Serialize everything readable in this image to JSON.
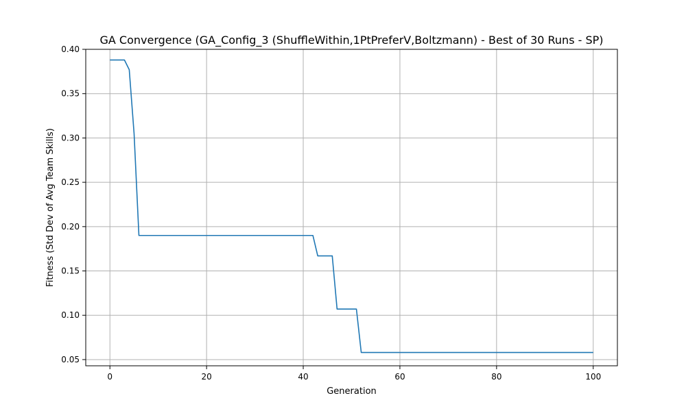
{
  "chart_data": {
    "type": "line",
    "title": "GA Convergence (GA_Config_3 (ShuffleWithin,1PtPreferV,Boltzmann) - Best of 30 Runs - SP)",
    "xlabel": "Generation",
    "ylabel": "Fitness (Std Dev of Avg Team Skills)",
    "xlim": [
      -5,
      105
    ],
    "ylim": [
      0.043,
      0.4
    ],
    "xticks": [
      0,
      20,
      40,
      60,
      80,
      100
    ],
    "xtick_labels": [
      "0",
      "20",
      "40",
      "60",
      "80",
      "100"
    ],
    "yticks": [
      0.05,
      0.1,
      0.15,
      0.2,
      0.25,
      0.3,
      0.35,
      0.4
    ],
    "ytick_labels": [
      "0.05",
      "0.10",
      "0.15",
      "0.20",
      "0.25",
      "0.30",
      "0.35",
      "0.40"
    ],
    "grid": true,
    "legend": false,
    "series": [
      {
        "color": "#1f77b4",
        "x": [
          0,
          1,
          2,
          3,
          4,
          5,
          6,
          7,
          8,
          9,
          10,
          11,
          12,
          13,
          14,
          15,
          16,
          17,
          18,
          19,
          20,
          21,
          22,
          23,
          24,
          25,
          26,
          27,
          28,
          29,
          30,
          31,
          32,
          33,
          34,
          35,
          36,
          37,
          38,
          39,
          40,
          41,
          42,
          43,
          44,
          45,
          46,
          47,
          48,
          49,
          50,
          51,
          52,
          53,
          54,
          55,
          56,
          57,
          58,
          59,
          60,
          61,
          62,
          63,
          64,
          65,
          66,
          67,
          68,
          69,
          70,
          71,
          72,
          73,
          74,
          75,
          76,
          77,
          78,
          79,
          80,
          81,
          82,
          83,
          84,
          85,
          86,
          87,
          88,
          89,
          90,
          91,
          92,
          93,
          94,
          95,
          96,
          97,
          98,
          99,
          100
        ],
        "y": [
          0.388,
          0.388,
          0.388,
          0.388,
          0.377,
          0.305,
          0.19,
          0.19,
          0.19,
          0.19,
          0.19,
          0.19,
          0.19,
          0.19,
          0.19,
          0.19,
          0.19,
          0.19,
          0.19,
          0.19,
          0.19,
          0.19,
          0.19,
          0.19,
          0.19,
          0.19,
          0.19,
          0.19,
          0.19,
          0.19,
          0.19,
          0.19,
          0.19,
          0.19,
          0.19,
          0.19,
          0.19,
          0.19,
          0.19,
          0.19,
          0.19,
          0.19,
          0.19,
          0.167,
          0.167,
          0.167,
          0.167,
          0.107,
          0.107,
          0.107,
          0.107,
          0.107,
          0.058,
          0.058,
          0.058,
          0.058,
          0.058,
          0.058,
          0.058,
          0.058,
          0.058,
          0.058,
          0.058,
          0.058,
          0.058,
          0.058,
          0.058,
          0.058,
          0.058,
          0.058,
          0.058,
          0.058,
          0.058,
          0.058,
          0.058,
          0.058,
          0.058,
          0.058,
          0.058,
          0.058,
          0.058,
          0.058,
          0.058,
          0.058,
          0.058,
          0.058,
          0.058,
          0.058,
          0.058,
          0.058,
          0.058,
          0.058,
          0.058,
          0.058,
          0.058,
          0.058,
          0.058,
          0.058,
          0.058,
          0.058,
          0.058
        ]
      }
    ]
  }
}
